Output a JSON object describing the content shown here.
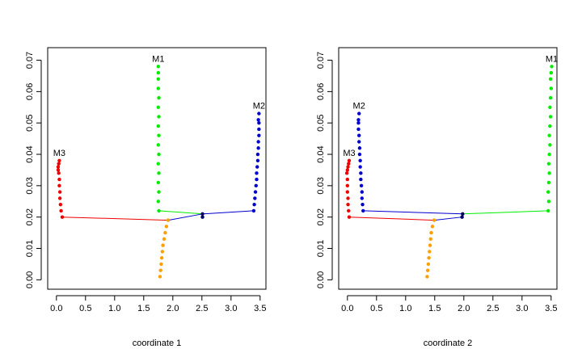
{
  "chart_data": [
    {
      "type": "scatter",
      "xlabel": "coordinate 1",
      "xlim": [
        -0.15,
        3.6
      ],
      "ylim": [
        -0.003,
        0.074
      ],
      "xticks": [
        0.0,
        0.5,
        1.0,
        1.5,
        2.0,
        2.5,
        3.0,
        3.5
      ],
      "xtick_labels": [
        "0.0",
        "0.5",
        "1.0",
        "1.5",
        "2.0",
        "2.5",
        "3.0",
        "3.5"
      ],
      "yticks": [
        0.0,
        0.01,
        0.02,
        0.03,
        0.04,
        0.05,
        0.06,
        0.07
      ],
      "ytick_labels": [
        "0.00",
        "0.01",
        "0.02",
        "0.03",
        "0.04",
        "0.05",
        "0.06",
        "0.07"
      ],
      "branches": [
        {
          "color": "#ff9f00",
          "points": [
            [
              1.78,
              0.001
            ],
            [
              1.79,
              0.003
            ],
            [
              1.8,
              0.005
            ],
            [
              1.81,
              0.007
            ],
            [
              1.82,
              0.009
            ],
            [
              1.83,
              0.011
            ],
            [
              1.85,
              0.013
            ],
            [
              1.87,
              0.015
            ],
            [
              1.89,
              0.017
            ],
            [
              1.92,
              0.019
            ]
          ]
        },
        {
          "color": "#ee0000",
          "points": [
            [
              0.1,
              0.02
            ],
            [
              0.08,
              0.022
            ],
            [
              0.07,
              0.024
            ],
            [
              0.06,
              0.026
            ],
            [
              0.06,
              0.028
            ],
            [
              0.05,
              0.03
            ],
            [
              0.05,
              0.032
            ],
            [
              0.04,
              0.034
            ],
            [
              0.03,
              0.035
            ],
            [
              0.03,
              0.036
            ],
            [
              0.04,
              0.037
            ],
            [
              0.05,
              0.038
            ]
          ]
        },
        {
          "color": "#00ee00",
          "points": [
            [
              1.76,
              0.022
            ],
            [
              1.75,
              0.025
            ],
            [
              1.76,
              0.028
            ],
            [
              1.75,
              0.031
            ],
            [
              1.76,
              0.034
            ],
            [
              1.75,
              0.037
            ],
            [
              1.76,
              0.04
            ],
            [
              1.75,
              0.043
            ],
            [
              1.76,
              0.046
            ],
            [
              1.75,
              0.049
            ],
            [
              1.76,
              0.052
            ],
            [
              1.75,
              0.055
            ],
            [
              1.76,
              0.058
            ],
            [
              1.75,
              0.061
            ],
            [
              1.75,
              0.064
            ],
            [
              1.75,
              0.066
            ],
            [
              1.75,
              0.068
            ]
          ]
        },
        {
          "color": "#0000cc",
          "points": [
            [
              3.39,
              0.022
            ],
            [
              3.4,
              0.024
            ],
            [
              3.41,
              0.026
            ],
            [
              3.42,
              0.028
            ],
            [
              3.43,
              0.03
            ],
            [
              3.44,
              0.032
            ],
            [
              3.44,
              0.034
            ],
            [
              3.45,
              0.036
            ],
            [
              3.46,
              0.038
            ],
            [
              3.46,
              0.04
            ],
            [
              3.47,
              0.042
            ],
            [
              3.47,
              0.044
            ],
            [
              3.48,
              0.046
            ],
            [
              3.48,
              0.048
            ],
            [
              3.48,
              0.05
            ],
            [
              3.47,
              0.051
            ],
            [
              3.48,
              0.053
            ]
          ]
        },
        {
          "color": "#000066",
          "points": [
            [
              2.51,
              0.02
            ],
            [
              2.51,
              0.021
            ]
          ]
        }
      ],
      "connectors": [
        {
          "color": "#ee0000",
          "from": [
            0.1,
            0.02
          ],
          "to": [
            1.92,
            0.019
          ]
        },
        {
          "color": "#0000cc",
          "from": [
            1.92,
            0.019
          ],
          "to": [
            2.51,
            0.021
          ]
        },
        {
          "color": "#00ee00",
          "from": [
            1.76,
            0.022
          ],
          "to": [
            2.51,
            0.021
          ]
        },
        {
          "color": "#0000cc",
          "from": [
            2.51,
            0.021
          ],
          "to": [
            3.39,
            0.022
          ]
        }
      ],
      "annotations": [
        {
          "text": "M1",
          "x": 1.75,
          "y": 0.0695
        },
        {
          "text": "M2",
          "x": 3.48,
          "y": 0.0545
        },
        {
          "text": "M3",
          "x": 0.05,
          "y": 0.0395
        }
      ]
    },
    {
      "type": "scatter",
      "xlabel": "coordinate 2",
      "xlim": [
        -0.15,
        3.6
      ],
      "ylim": [
        -0.003,
        0.074
      ],
      "xticks": [
        0.0,
        0.5,
        1.0,
        1.5,
        2.0,
        2.5,
        3.0,
        3.5
      ],
      "xtick_labels": [
        "0.0",
        "0.5",
        "1.0",
        "1.5",
        "2.0",
        "2.5",
        "3.0",
        "3.5"
      ],
      "yticks": [
        0.0,
        0.01,
        0.02,
        0.03,
        0.04,
        0.05,
        0.06,
        0.07
      ],
      "ytick_labels": [
        "0.00",
        "0.01",
        "0.02",
        "0.03",
        "0.04",
        "0.05",
        "0.06",
        "0.07"
      ],
      "branches": [
        {
          "color": "#ff9f00",
          "points": [
            [
              1.37,
              0.001
            ],
            [
              1.38,
              0.003
            ],
            [
              1.39,
              0.005
            ],
            [
              1.4,
              0.007
            ],
            [
              1.41,
              0.009
            ],
            [
              1.42,
              0.011
            ],
            [
              1.43,
              0.013
            ],
            [
              1.44,
              0.015
            ],
            [
              1.46,
              0.017
            ],
            [
              1.49,
              0.019
            ]
          ]
        },
        {
          "color": "#ee0000",
          "points": [
            [
              0.03,
              0.02
            ],
            [
              0.02,
              0.022
            ],
            [
              0.01,
              0.024
            ],
            [
              0.01,
              0.026
            ],
            [
              0.0,
              0.028
            ],
            [
              0.0,
              0.03
            ],
            [
              0.0,
              0.032
            ],
            [
              -0.01,
              0.034
            ],
            [
              0.0,
              0.035
            ],
            [
              0.01,
              0.036
            ],
            [
              0.02,
              0.037
            ],
            [
              0.03,
              0.038
            ]
          ]
        },
        {
          "color": "#00ee00",
          "points": [
            [
              3.45,
              0.022
            ],
            [
              3.46,
              0.025
            ],
            [
              3.45,
              0.028
            ],
            [
              3.46,
              0.031
            ],
            [
              3.47,
              0.034
            ],
            [
              3.46,
              0.037
            ],
            [
              3.47,
              0.04
            ],
            [
              3.48,
              0.043
            ],
            [
              3.47,
              0.046
            ],
            [
              3.48,
              0.049
            ],
            [
              3.49,
              0.052
            ],
            [
              3.48,
              0.055
            ],
            [
              3.49,
              0.058
            ],
            [
              3.5,
              0.061
            ],
            [
              3.49,
              0.064
            ],
            [
              3.5,
              0.066
            ],
            [
              3.51,
              0.068
            ]
          ]
        },
        {
          "color": "#0000cc",
          "points": [
            [
              0.27,
              0.022
            ],
            [
              0.26,
              0.024
            ],
            [
              0.25,
              0.026
            ],
            [
              0.25,
              0.028
            ],
            [
              0.24,
              0.03
            ],
            [
              0.23,
              0.032
            ],
            [
              0.23,
              0.034
            ],
            [
              0.22,
              0.036
            ],
            [
              0.22,
              0.038
            ],
            [
              0.21,
              0.04
            ],
            [
              0.21,
              0.042
            ],
            [
              0.2,
              0.044
            ],
            [
              0.2,
              0.046
            ],
            [
              0.19,
              0.048
            ],
            [
              0.19,
              0.05
            ],
            [
              0.19,
              0.051
            ],
            [
              0.2,
              0.053
            ]
          ]
        },
        {
          "color": "#000066",
          "points": [
            [
              1.97,
              0.02
            ],
            [
              1.98,
              0.021
            ]
          ]
        }
      ],
      "connectors": [
        {
          "color": "#ee0000",
          "from": [
            0.03,
            0.02
          ],
          "to": [
            1.49,
            0.019
          ]
        },
        {
          "color": "#0000cc",
          "from": [
            1.49,
            0.019
          ],
          "to": [
            1.97,
            0.02
          ]
        },
        {
          "color": "#0000cc",
          "from": [
            0.27,
            0.022
          ],
          "to": [
            1.98,
            0.021
          ]
        },
        {
          "color": "#00ee00",
          "from": [
            1.98,
            0.021
          ],
          "to": [
            3.45,
            0.022
          ]
        }
      ],
      "annotations": [
        {
          "text": "M1",
          "x": 3.51,
          "y": 0.0695
        },
        {
          "text": "M2",
          "x": 0.2,
          "y": 0.0545
        },
        {
          "text": "M3",
          "x": 0.03,
          "y": 0.0395
        }
      ]
    }
  ]
}
